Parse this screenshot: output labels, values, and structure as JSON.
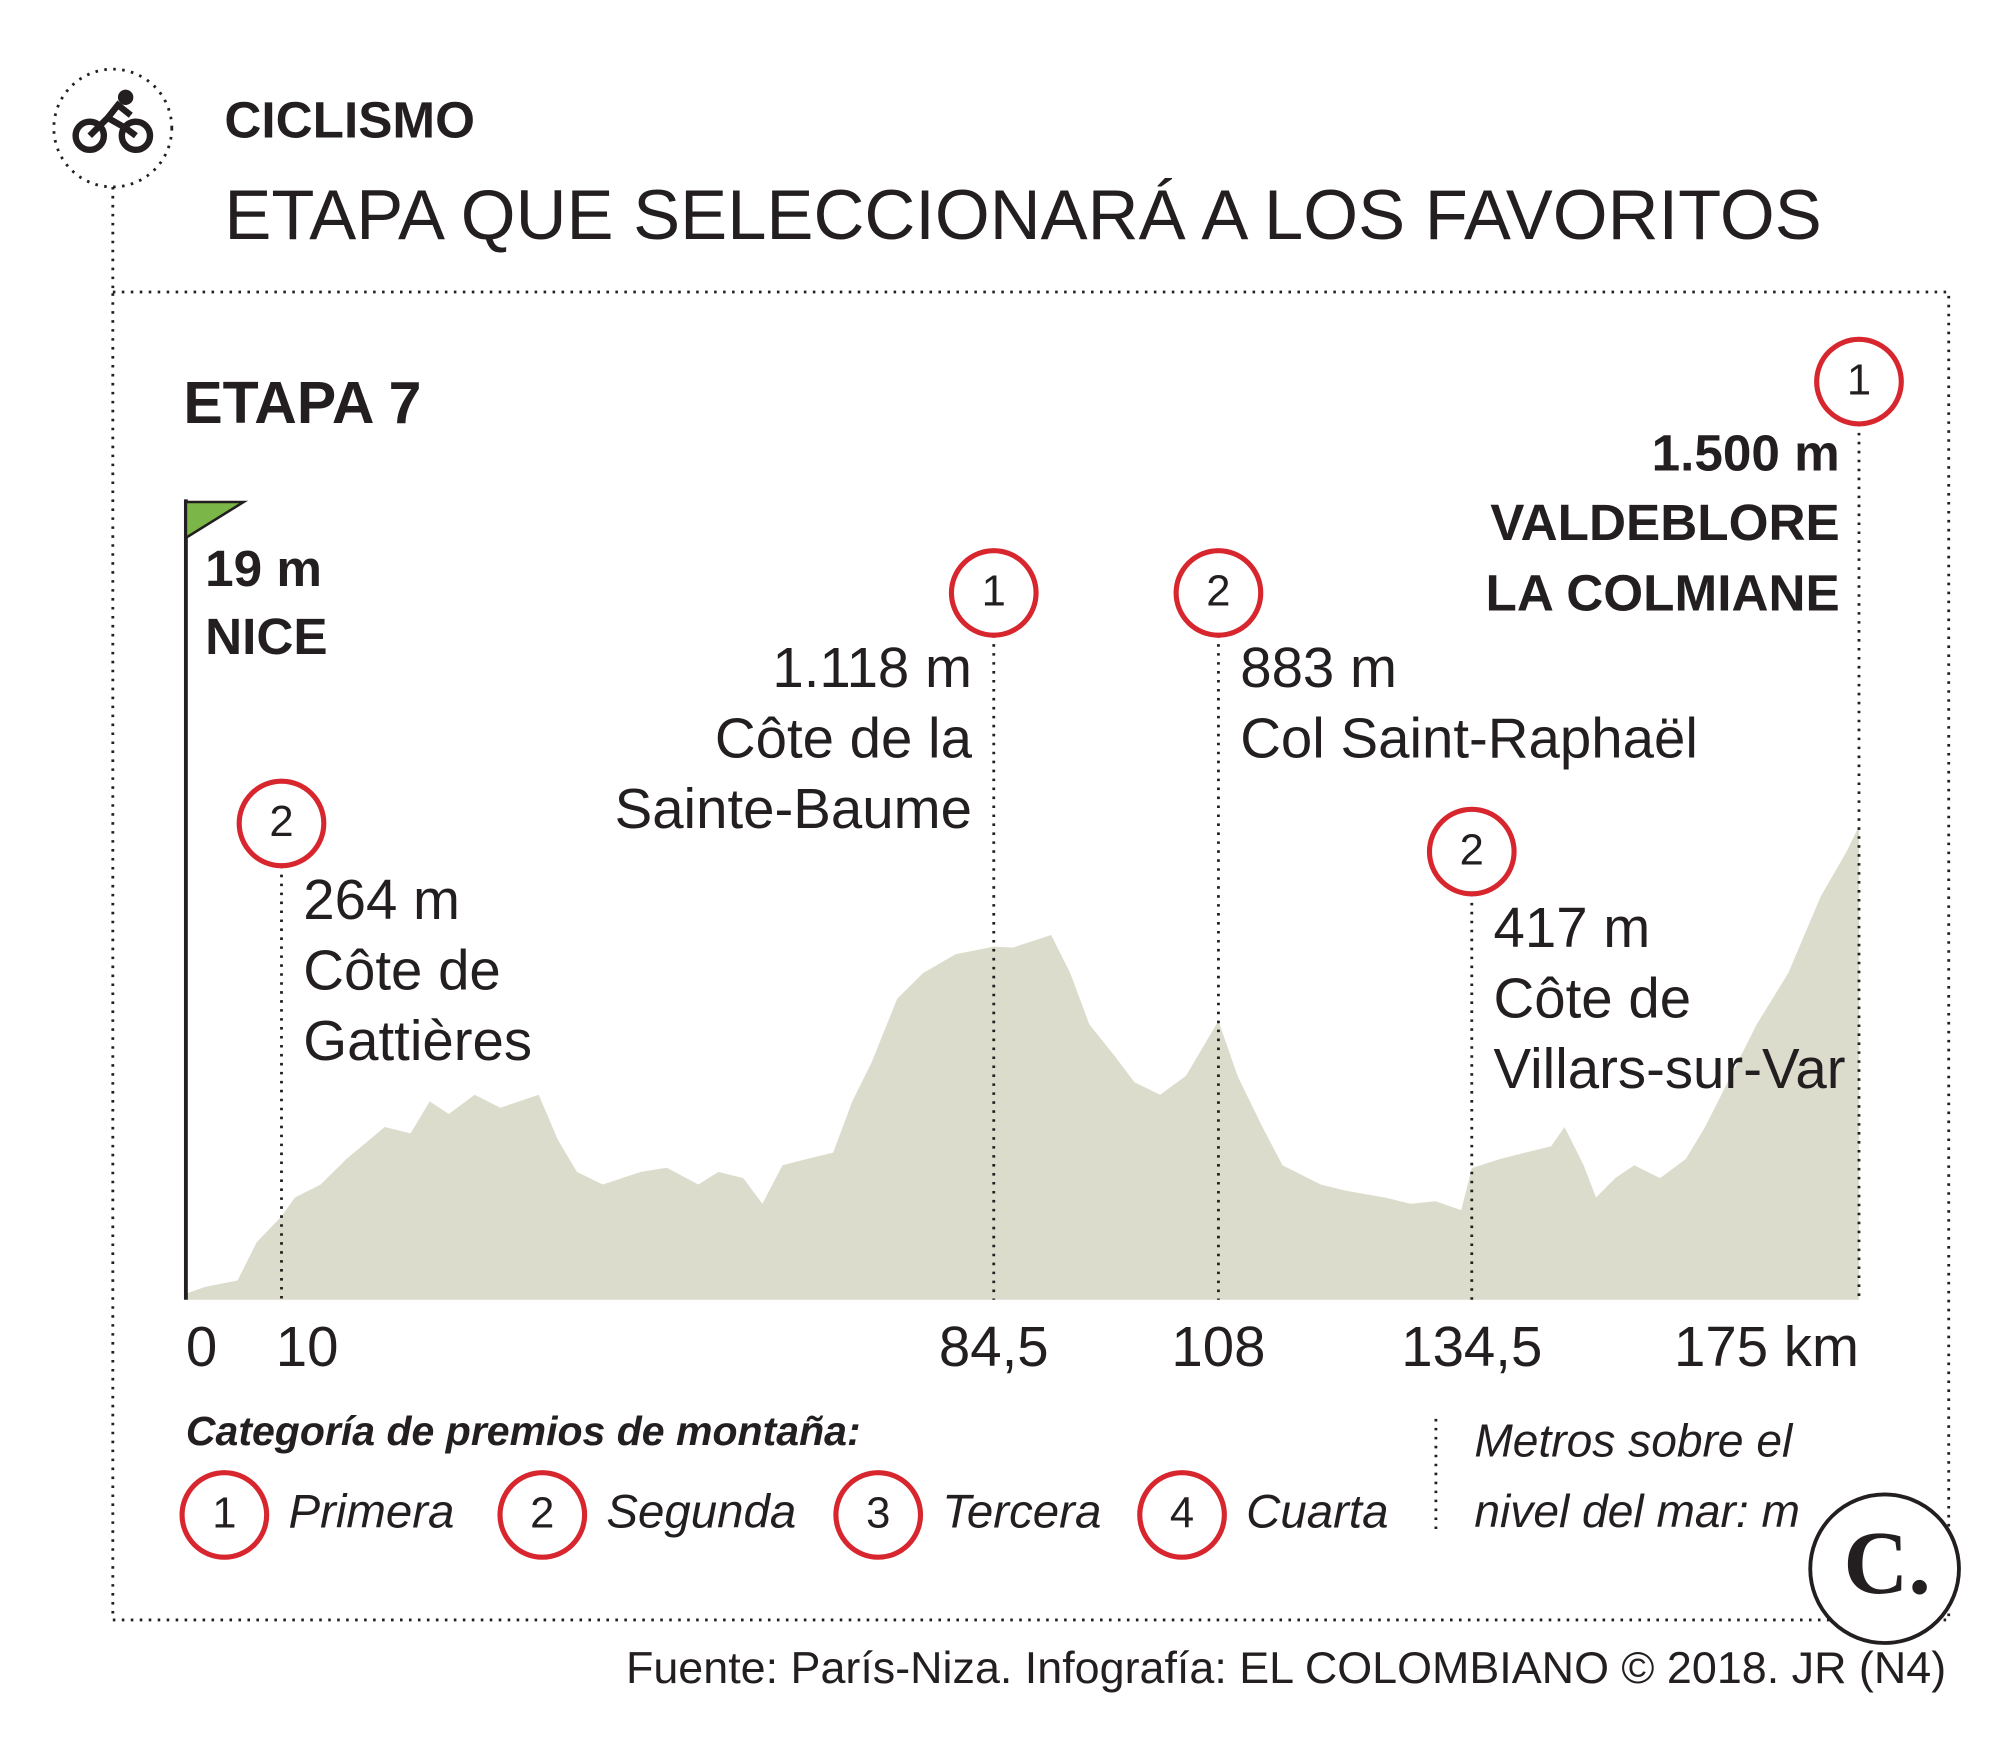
{
  "section": "CICLISMO",
  "title": "ETAPA QUE SELECCIONARÁ A LOS FAVORITOS",
  "chart_data": {
    "type": "area",
    "title": "ETAPA 7",
    "color": "#dcdccd",
    "x": [
      0,
      2.0,
      5.4,
      7.4,
      10,
      11.4,
      14.1,
      16.8,
      20.8,
      23.5,
      25.5,
      27.5,
      30.2,
      32.9,
      36.9,
      38.9,
      40.9,
      43.6,
      47.6,
      50.3,
      53.6,
      55.7,
      58.3,
      60.3,
      62.4,
      65.0,
      67.7,
      69.7,
      71.7,
      74.4,
      77.1,
      80.5,
      84.5,
      86.5,
      88.5,
      90.5,
      92.5,
      94.5,
      97.2,
      99.2,
      101.9,
      104.6,
      108,
      110.0,
      112.6,
      114.7,
      118.7,
      121.4,
      125.4,
      128.1,
      130.7,
      133.4,
      134.5,
      137.5,
      140.1,
      142.8,
      144.2,
      146.2,
      147.5,
      149.5,
      151.5,
      154.2,
      156.9,
      158.9,
      161.6,
      164.3,
      167.6,
      171.0,
      173.7,
      175
    ],
    "values": [
      19,
      41,
      61,
      182,
      264,
      324,
      365,
      446,
      547,
      527,
      628,
      588,
      649,
      608,
      649,
      507,
      405,
      365,
      405,
      418,
      365,
      405,
      385,
      304,
      426,
      446,
      466,
      628,
      750,
      953,
      1034,
      1094,
      1118,
      1115,
      1135,
      1155,
      1034,
      872,
      770,
      689,
      649,
      709,
      883,
      709,
      547,
      426,
      365,
      345,
      324,
      304,
      312,
      284,
      417,
      446,
      466,
      486,
      547,
      426,
      324,
      385,
      426,
      385,
      446,
      547,
      709,
      872,
      1034,
      1277,
      1419,
      1500
    ],
    "xlim": [
      0,
      175
    ],
    "ylim": [
      0,
      3000
    ],
    "xticks": [
      0,
      10,
      {
        "value": 84.5,
        "label": "84,5"
      },
      108,
      {
        "value": 134.5,
        "label": "134,5"
      },
      {
        "value": 175,
        "label": "175 km"
      }
    ],
    "start": {
      "elevation_label": "19 m",
      "name": "NICE"
    },
    "finish": {
      "km": 175,
      "category": 1,
      "elevation_label": "1.500 m",
      "name_lines": [
        "VALDEBLORE",
        "LA COLMIANE"
      ]
    },
    "climbs": [
      {
        "km": 10,
        "category": 2,
        "elevation_label": "264 m",
        "name_lines": [
          "Côte de",
          "Gattières"
        ]
      },
      {
        "km": 84.5,
        "category": 1,
        "elevation_label": "1.118 m",
        "name_lines": [
          "Côte de la",
          "Sainte-Baume"
        ]
      },
      {
        "km": 108,
        "category": 2,
        "elevation_label": "883 m",
        "name_lines": [
          "Col Saint-Raphaël"
        ]
      },
      {
        "km": 134.5,
        "category": 2,
        "elevation_label": "417 m",
        "name_lines": [
          "Côte de",
          "Villars-sur-Var"
        ]
      }
    ]
  },
  "legend": {
    "title": "Categoría de premios de montaña:",
    "items": [
      {
        "number": 1,
        "label": "Primera"
      },
      {
        "number": 2,
        "label": "Segunda"
      },
      {
        "number": 3,
        "label": "Tercera"
      },
      {
        "number": 4,
        "label": "Cuarta"
      }
    ],
    "unit_note": [
      "Metros sobre el",
      "nivel del mar: m"
    ]
  },
  "logo": "C.",
  "source": "Fuente: París-Niza. Infografía: EL COLOMBIANO © 2018. JR (N4)"
}
